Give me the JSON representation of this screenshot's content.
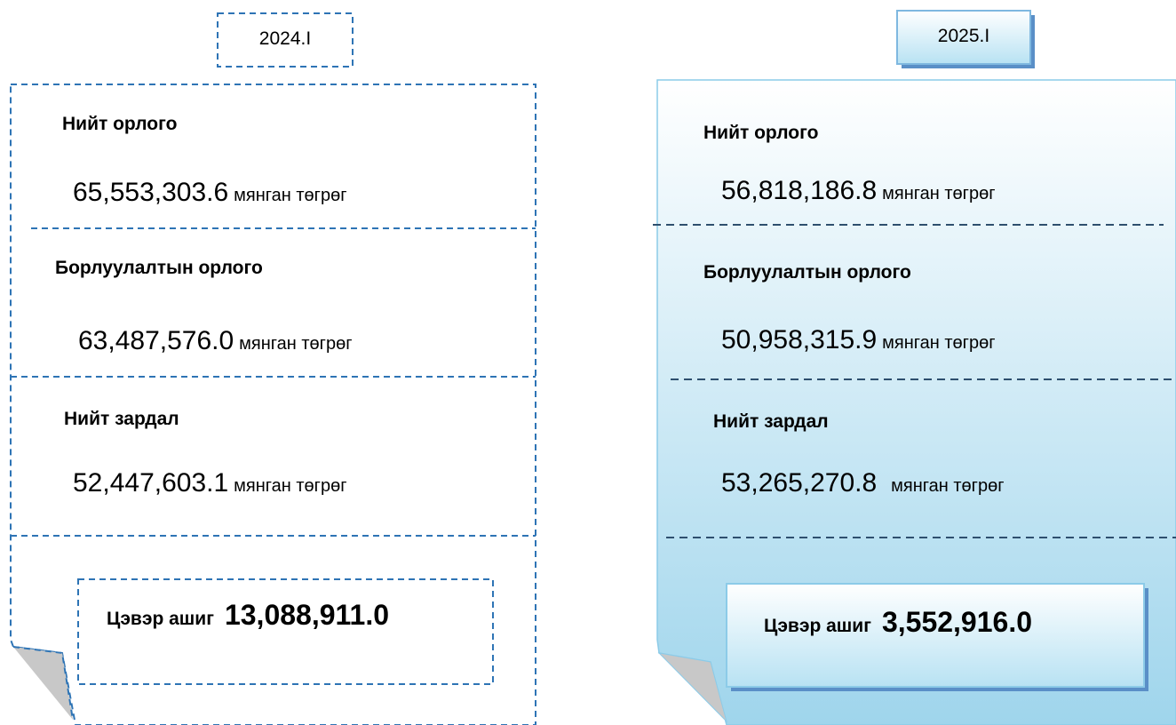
{
  "panels": [
    {
      "period": "2024.I",
      "items": [
        {
          "label": "Нийт орлого",
          "value": "65,553,303.6",
          "unit": "мянган төгрөг"
        },
        {
          "label": "Борлуулалтын орлого",
          "value": "63,487,576.0",
          "unit": "мянган төгрөг"
        },
        {
          "label": "Нийт зардал",
          "value": "52,447,603.1",
          "unit": "мянган төгрөг"
        }
      ],
      "profit": {
        "label": "Цэвэр ашиг",
        "value": "13,088,911.0"
      }
    },
    {
      "period": "2025.I",
      "items": [
        {
          "label": "Нийт орлого",
          "value": "56,818,186.8",
          "unit": "мянган төгрөг"
        },
        {
          "label": "Борлуулалтын орлого",
          "value": "50,958,315.9",
          "unit": "мянган төгрөг"
        },
        {
          "label": "Нийт зардал",
          "value": "53,265,270.8",
          "unit": "мянган төгрөг"
        }
      ],
      "profit": {
        "label": "Цэвэр ашиг",
        "value": "3,552,916.0"
      }
    }
  ]
}
